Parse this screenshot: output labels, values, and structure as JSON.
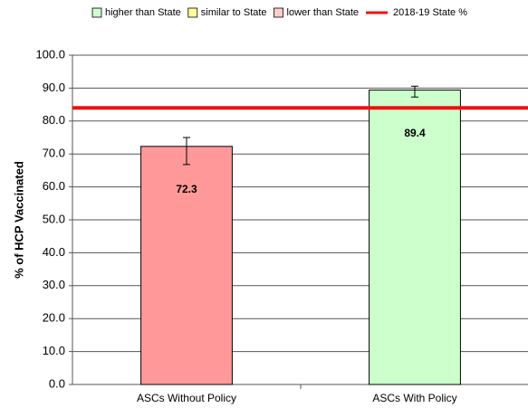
{
  "chart_data": {
    "type": "bar",
    "categories": [
      "ASCs Without Policy",
      "ASCs With Policy"
    ],
    "values": [
      72.3,
      89.4
    ],
    "error_low": [
      5.5,
      2.1
    ],
    "error_high": [
      2.7,
      1.2
    ],
    "colors": [
      "#ff9999",
      "#ccffcc"
    ],
    "ylabel": "% of HCP Vaccinated",
    "ylim": [
      0,
      100
    ],
    "yticks": [
      {
        "value": 0,
        "label": "0.0"
      },
      {
        "value": 10,
        "label": "10.0"
      },
      {
        "value": 20,
        "label": "20.0"
      },
      {
        "value": 30,
        "label": "30.0"
      },
      {
        "value": 40,
        "label": "40.0"
      },
      {
        "value": 50,
        "label": "50.0"
      },
      {
        "value": 60,
        "label": "60.0"
      },
      {
        "value": 70,
        "label": "70.0"
      },
      {
        "value": 80,
        "label": "80.0"
      },
      {
        "value": 90,
        "label": "90.0"
      },
      {
        "value": 100,
        "label": "100.0"
      }
    ],
    "grid": true,
    "reference_line": {
      "name": "2018-19 State %",
      "value": 84,
      "color": "#ee1111"
    },
    "legend": [
      {
        "name": "higher than State",
        "color": "#ccffcc"
      },
      {
        "name": "similar to State",
        "color": "#ffff99"
      },
      {
        "name": "lower than State",
        "color": "#ffcccc"
      }
    ],
    "legend_position": "top"
  }
}
